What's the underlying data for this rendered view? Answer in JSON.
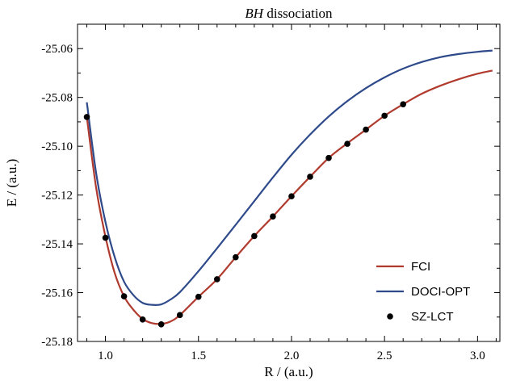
{
  "chart_data": {
    "type": "line",
    "title_italic": "BH",
    "title_rest": " dissociation",
    "xlabel": "R / (a.u.)",
    "ylabel": "E / (a.u.)",
    "xlim": [
      0.85,
      3.12
    ],
    "ylim": [
      -25.18,
      -25.05
    ],
    "x_ticks": [
      1.0,
      1.5,
      2.0,
      2.5,
      3.0
    ],
    "x_tick_labels": [
      "1.0",
      "1.5",
      "2.0",
      "2.5",
      "3.0"
    ],
    "y_ticks": [
      -25.18,
      -25.16,
      -25.14,
      -25.12,
      -25.1,
      -25.08,
      -25.06
    ],
    "y_tick_labels": [
      "-25.18",
      "-25.16",
      "-25.14",
      "-25.12",
      "-25.10",
      "-25.08",
      "-25.06"
    ],
    "grid": false,
    "legend_position": "lower-right",
    "series": [
      {
        "name": "FCI",
        "kind": "line",
        "color": "#b03a2e",
        "x": [
          0.9,
          0.95,
          1.0,
          1.05,
          1.1,
          1.15,
          1.2,
          1.25,
          1.3,
          1.35,
          1.4,
          1.5,
          1.6,
          1.7,
          1.8,
          1.9,
          2.0,
          2.1,
          2.2,
          2.3,
          2.4,
          2.5,
          2.6,
          2.7,
          2.8,
          2.9,
          3.0,
          3.08
        ],
        "y": [
          -25.088,
          -25.117,
          -25.137,
          -25.152,
          -25.1615,
          -25.167,
          -25.1708,
          -25.1725,
          -25.1728,
          -25.1718,
          -25.1692,
          -25.1617,
          -25.1545,
          -25.1455,
          -25.1368,
          -25.1288,
          -25.1205,
          -25.1125,
          -25.1048,
          -25.0988,
          -25.0932,
          -25.0875,
          -25.0828,
          -25.0785,
          -25.0752,
          -25.0725,
          -25.0703,
          -25.069
        ]
      },
      {
        "name": "DOCI-OPT",
        "kind": "line",
        "color": "#2e4a8a",
        "x": [
          0.9,
          0.95,
          1.0,
          1.05,
          1.1,
          1.15,
          1.2,
          1.25,
          1.3,
          1.35,
          1.4,
          1.5,
          1.6,
          1.7,
          1.8,
          1.9,
          2.0,
          2.1,
          2.2,
          2.3,
          2.4,
          2.5,
          2.6,
          2.7,
          2.8,
          2.9,
          3.0,
          3.08
        ],
        "y": [
          -25.082,
          -25.111,
          -25.131,
          -25.1455,
          -25.1555,
          -25.161,
          -25.1642,
          -25.165,
          -25.1648,
          -25.1628,
          -25.1598,
          -25.1512,
          -25.1418,
          -25.1322,
          -25.1225,
          -25.1128,
          -25.1035,
          -25.0952,
          -25.0878,
          -25.0815,
          -25.0762,
          -25.0718,
          -25.0682,
          -25.0655,
          -25.0635,
          -25.0622,
          -25.0613,
          -25.0608
        ]
      },
      {
        "name": "SZ-LCT",
        "kind": "scatter",
        "color": "#000000",
        "x": [
          0.9,
          1.0,
          1.1,
          1.2,
          1.3,
          1.4,
          1.5,
          1.6,
          1.7,
          1.8,
          1.9,
          2.0,
          2.1,
          2.2,
          2.3,
          2.4,
          2.5,
          2.6
        ],
        "y": [
          -25.088,
          -25.1375,
          -25.1615,
          -25.171,
          -25.173,
          -25.1692,
          -25.1617,
          -25.1545,
          -25.1455,
          -25.1368,
          -25.1288,
          -25.1205,
          -25.1125,
          -25.1048,
          -25.099,
          -25.0932,
          -25.0875,
          -25.0828
        ]
      }
    ]
  }
}
